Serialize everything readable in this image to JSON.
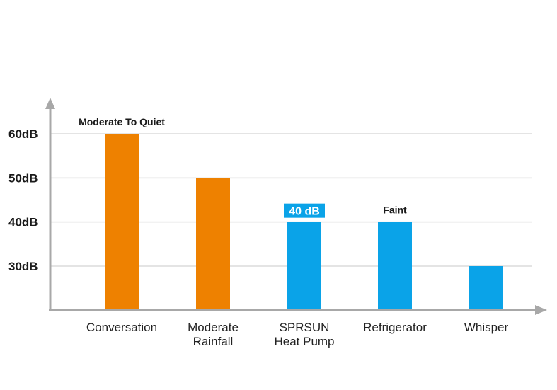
{
  "chart_data": {
    "type": "bar",
    "categories": [
      [
        "Conversation"
      ],
      [
        "Moderate",
        "Rainfall"
      ],
      [
        "SPRSUN",
        "Heat Pump"
      ],
      [
        "Refrigerator"
      ],
      [
        "Whisper"
      ]
    ],
    "values": [
      60,
      50,
      40,
      40,
      30
    ],
    "bar_colors": [
      "#ee8100",
      "#ee8100",
      "#0aa3e8",
      "#0aa3e8",
      "#0aa3e8"
    ],
    "y_ticks": [
      {
        "value": 60,
        "label": "60dB"
      },
      {
        "value": 50,
        "label": "50dB"
      },
      {
        "value": 40,
        "label": "40dB"
      },
      {
        "value": 30,
        "label": "30dB"
      }
    ],
    "grid": true,
    "annotations": [
      {
        "bar": 0,
        "text": "Moderate To Quiet",
        "style": "plain"
      },
      {
        "bar": 2,
        "text": "40 dB",
        "style": "badge"
      },
      {
        "bar": 3,
        "text": "Faint",
        "style": "plain"
      }
    ],
    "axis_color": "#a8a8a8",
    "grid_color": "#dcdcdc"
  }
}
